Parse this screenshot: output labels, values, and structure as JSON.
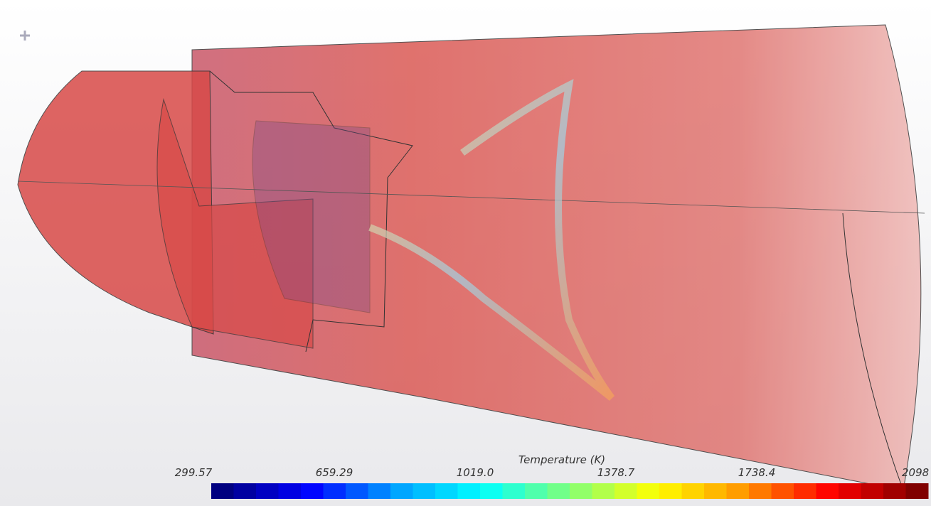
{
  "colorbar": {
    "title": "Temperature (K)",
    "ticks": [
      "299.57",
      "659.29",
      "1019.0",
      "1378.7",
      "1738.4",
      "2098"
    ]
  }
}
